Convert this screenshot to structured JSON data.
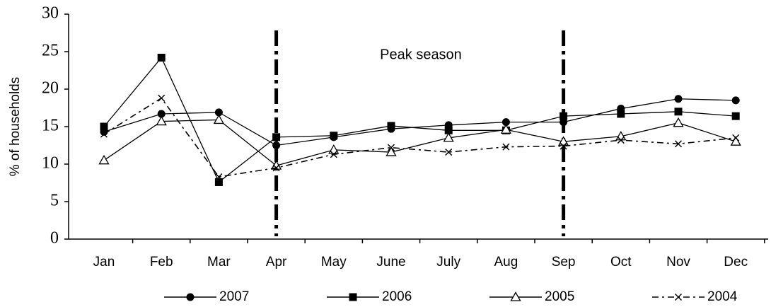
{
  "chart_data": {
    "type": "line",
    "y_label": "% of households",
    "annotation": "Peak season",
    "categories": [
      "Jan",
      "Feb",
      "Mar",
      "Apr",
      "May",
      "June",
      "July",
      "Aug",
      "Sep",
      "Oct",
      "Nov",
      "Dec"
    ],
    "reference_lines": [
      "Apr",
      "Sep"
    ],
    "series": [
      {
        "name": "2007",
        "color": "#000000",
        "marker": "circle",
        "dash": "solid",
        "values": [
          14.3,
          16.7,
          16.9,
          12.5,
          13.6,
          14.7,
          15.2,
          15.6,
          15.6,
          17.4,
          18.7,
          18.5
        ]
      },
      {
        "name": "2006",
        "color": "#000000",
        "marker": "square",
        "dash": "solid",
        "values": [
          15.0,
          24.2,
          7.6,
          13.6,
          13.8,
          15.1,
          14.5,
          14.5,
          16.4,
          16.7,
          17.0,
          16.4
        ]
      },
      {
        "name": "2005",
        "color": "#000000",
        "marker": "triangle",
        "dash": "solid",
        "values": [
          10.5,
          15.7,
          15.9,
          9.8,
          11.9,
          11.6,
          13.5,
          14.6,
          13.0,
          13.7,
          15.5,
          13.0
        ]
      },
      {
        "name": "2004",
        "color": "#000000",
        "marker": "cross",
        "dash": "dashdot",
        "values": [
          14.0,
          18.8,
          8.3,
          9.5,
          11.3,
          12.2,
          11.6,
          12.3,
          12.4,
          13.2,
          12.7,
          13.5
        ]
      }
    ],
    "ylim": [
      0,
      30
    ],
    "yticks": [
      0,
      5,
      10,
      15,
      20,
      25,
      30
    ],
    "legend": "bottom"
  }
}
